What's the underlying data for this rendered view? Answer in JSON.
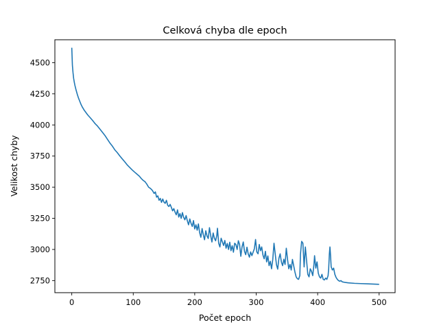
{
  "chart_data": {
    "type": "line",
    "title": "Celková chyba dle epoch",
    "xlabel": "Počet epoch",
    "ylabel": "Velikost chyby",
    "xlim": [
      -27.5,
      526
    ],
    "ylim": [
      2653,
      4684
    ],
    "xticks": [
      0,
      100,
      200,
      300,
      400,
      500
    ],
    "yticks": [
      2750,
      3000,
      3250,
      3500,
      3750,
      4000,
      4250,
      4500
    ],
    "grid": false,
    "color": "#1f77b4",
    "points": [
      [
        0,
        4620
      ],
      [
        1,
        4480
      ],
      [
        2,
        4420
      ],
      [
        3,
        4375
      ],
      [
        4,
        4345
      ],
      [
        5,
        4320
      ],
      [
        7,
        4280
      ],
      [
        9,
        4245
      ],
      [
        11,
        4215
      ],
      [
        13,
        4190
      ],
      [
        15,
        4165
      ],
      [
        17,
        4145
      ],
      [
        20,
        4120
      ],
      [
        23,
        4100
      ],
      [
        26,
        4080
      ],
      [
        30,
        4058
      ],
      [
        34,
        4035
      ],
      [
        38,
        4010
      ],
      [
        42,
        3990
      ],
      [
        46,
        3965
      ],
      [
        50,
        3940
      ],
      [
        54,
        3915
      ],
      [
        58,
        3885
      ],
      [
        62,
        3855
      ],
      [
        66,
        3830
      ],
      [
        70,
        3800
      ],
      [
        74,
        3778
      ],
      [
        78,
        3752
      ],
      [
        82,
        3728
      ],
      [
        86,
        3705
      ],
      [
        90,
        3680
      ],
      [
        94,
        3660
      ],
      [
        98,
        3640
      ],
      [
        102,
        3622
      ],
      [
        106,
        3605
      ],
      [
        110,
        3588
      ],
      [
        113,
        3570
      ],
      [
        116,
        3555
      ],
      [
        119,
        3545
      ],
      [
        122,
        3525
      ],
      [
        125,
        3500
      ],
      [
        128,
        3490
      ],
      [
        131,
        3475
      ],
      [
        134,
        3450
      ],
      [
        136,
        3462
      ],
      [
        138,
        3420
      ],
      [
        140,
        3430
      ],
      [
        142,
        3395
      ],
      [
        144,
        3410
      ],
      [
        146,
        3378
      ],
      [
        148,
        3405
      ],
      [
        150,
        3380
      ],
      [
        152,
        3370
      ],
      [
        154,
        3395
      ],
      [
        156,
        3355
      ],
      [
        158,
        3345
      ],
      [
        160,
        3362
      ],
      [
        162,
        3338
      ],
      [
        164,
        3310
      ],
      [
        166,
        3328
      ],
      [
        168,
        3300
      ],
      [
        170,
        3278
      ],
      [
        172,
        3318
      ],
      [
        174,
        3260
      ],
      [
        176,
        3288
      ],
      [
        178,
        3250
      ],
      [
        180,
        3296
      ],
      [
        182,
        3258
      ],
      [
        184,
        3238
      ],
      [
        186,
        3272
      ],
      [
        188,
        3230
      ],
      [
        190,
        3198
      ],
      [
        192,
        3245
      ],
      [
        194,
        3210
      ],
      [
        196,
        3185
      ],
      [
        198,
        3232
      ],
      [
        200,
        3165
      ],
      [
        202,
        3198
      ],
      [
        204,
        3155
      ],
      [
        206,
        3205
      ],
      [
        208,
        3135
      ],
      [
        210,
        3098
      ],
      [
        212,
        3168
      ],
      [
        214,
        3118
      ],
      [
        216,
        3078
      ],
      [
        218,
        3150
      ],
      [
        220,
        3108
      ],
      [
        222,
        3088
      ],
      [
        224,
        3175
      ],
      [
        226,
        3110
      ],
      [
        228,
        3060
      ],
      [
        230,
        3132
      ],
      [
        232,
        3090
      ],
      [
        234,
        3070
      ],
      [
        236,
        3115
      ],
      [
        237,
        3170
      ],
      [
        239,
        3050
      ],
      [
        241,
        3020
      ],
      [
        243,
        3090
      ],
      [
        245,
        3060
      ],
      [
        247,
        3032
      ],
      [
        249,
        3072
      ],
      [
        251,
        3010
      ],
      [
        253,
        3048
      ],
      [
        255,
        3000
      ],
      [
        257,
        3058
      ],
      [
        259,
        2990
      ],
      [
        261,
        3030
      ],
      [
        263,
        2978
      ],
      [
        265,
        3050
      ],
      [
        267,
        3040
      ],
      [
        269,
        3000
      ],
      [
        271,
        3070
      ],
      [
        273,
        3040
      ],
      [
        275,
        2945
      ],
      [
        277,
        3020
      ],
      [
        279,
        3060
      ],
      [
        281,
        2985
      ],
      [
        283,
        2958
      ],
      [
        285,
        3018
      ],
      [
        287,
        2965
      ],
      [
        289,
        2938
      ],
      [
        291,
        2980
      ],
      [
        293,
        2950
      ],
      [
        295,
        2978
      ],
      [
        297,
        3005
      ],
      [
        299,
        3080
      ],
      [
        301,
        2980
      ],
      [
        303,
        2965
      ],
      [
        305,
        3040
      ],
      [
        307,
        2990
      ],
      [
        309,
        3020
      ],
      [
        311,
        2955
      ],
      [
        313,
        2925
      ],
      [
        315,
        2985
      ],
      [
        317,
        2900
      ],
      [
        319,
        2948
      ],
      [
        321,
        2870
      ],
      [
        323,
        2905
      ],
      [
        325,
        2845
      ],
      [
        327,
        2920
      ],
      [
        329,
        3050
      ],
      [
        331,
        2962
      ],
      [
        333,
        2878
      ],
      [
        335,
        2842
      ],
      [
        337,
        2930
      ],
      [
        339,
        2965
      ],
      [
        341,
        2900
      ],
      [
        343,
        2870
      ],
      [
        345,
        2922
      ],
      [
        347,
        2880
      ],
      [
        349,
        3010
      ],
      [
        351,
        2920
      ],
      [
        353,
        2845
      ],
      [
        355,
        2880
      ],
      [
        357,
        2835
      ],
      [
        359,
        2920
      ],
      [
        361,
        2870
      ],
      [
        363,
        2820
      ],
      [
        365,
        2780
      ],
      [
        367,
        2765
      ],
      [
        369,
        2760
      ],
      [
        371,
        2790
      ],
      [
        372,
        2960
      ],
      [
        374,
        3065
      ],
      [
        376,
        3050
      ],
      [
        378,
        2860
      ],
      [
        380,
        3020
      ],
      [
        382,
        2910
      ],
      [
        384,
        2800
      ],
      [
        386,
        2780
      ],
      [
        388,
        2845
      ],
      [
        390,
        2825
      ],
      [
        392,
        2790
      ],
      [
        394,
        2880
      ],
      [
        395,
        2950
      ],
      [
        397,
        2850
      ],
      [
        399,
        2900
      ],
      [
        401,
        2810
      ],
      [
        403,
        2780
      ],
      [
        405,
        2770
      ],
      [
        407,
        2800
      ],
      [
        409,
        2760
      ],
      [
        411,
        2755
      ],
      [
        413,
        2770
      ],
      [
        415,
        2760
      ],
      [
        417,
        2790
      ],
      [
        418,
        2850
      ],
      [
        419,
        2960
      ],
      [
        420,
        3020
      ],
      [
        421,
        2950
      ],
      [
        422,
        2860
      ],
      [
        424,
        2835
      ],
      [
        426,
        2850
      ],
      [
        428,
        2800
      ],
      [
        430,
        2775
      ],
      [
        432,
        2760
      ],
      [
        434,
        2750
      ],
      [
        436,
        2745
      ],
      [
        438,
        2750
      ],
      [
        440,
        2740
      ],
      [
        445,
        2735
      ],
      [
        450,
        2732
      ],
      [
        460,
        2728
      ],
      [
        470,
        2726
      ],
      [
        480,
        2724
      ],
      [
        490,
        2722
      ],
      [
        500,
        2720
      ]
    ]
  }
}
